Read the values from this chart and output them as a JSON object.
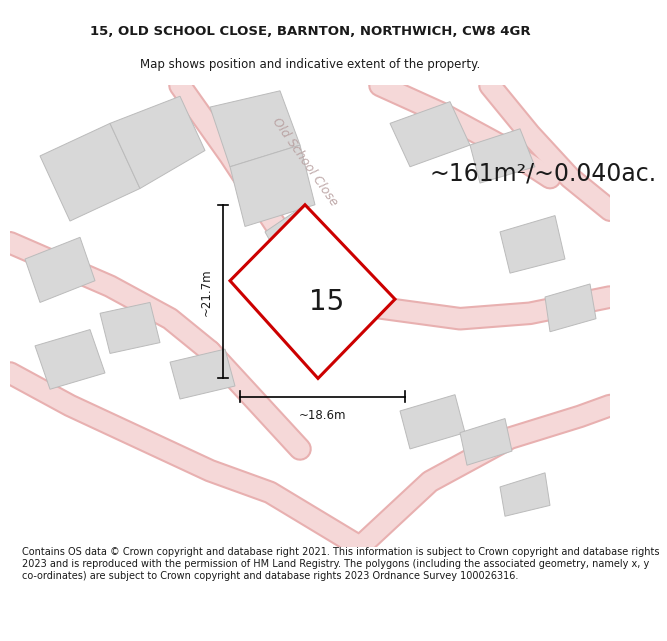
{
  "title_line1": "15, OLD SCHOOL CLOSE, BARNTON, NORTHWICH, CW8 4GR",
  "title_line2": "Map shows position and indicative extent of the property.",
  "area_text": "~161m²/~0.040ac.",
  "number_label": "15",
  "width_label": "~18.6m",
  "height_label": "~21.7m",
  "street_label": "Old School Close",
  "footer_text": "Contains OS data © Crown copyright and database right 2021. This information is subject to Crown copyright and database rights 2023 and is reproduced with the permission of HM Land Registry. The polygons (including the associated geometry, namely x, y co-ordinates) are subject to Crown copyright and database rights 2023 Ordnance Survey 100026316.",
  "map_bg": "#f5f2ee",
  "plot_edge_color": "#cc0000",
  "road_color": "#f5d8d8",
  "road_edge_color": "#e8b0b0",
  "building_fill": "#d8d8d8",
  "building_edge": "#bbbbbb",
  "title_fontsize": 9.5,
  "subtitle_fontsize": 8.5,
  "area_fontsize": 17,
  "number_fontsize": 20,
  "dim_fontsize": 8.5,
  "street_fontsize": 9,
  "footer_fontsize": 7.0
}
